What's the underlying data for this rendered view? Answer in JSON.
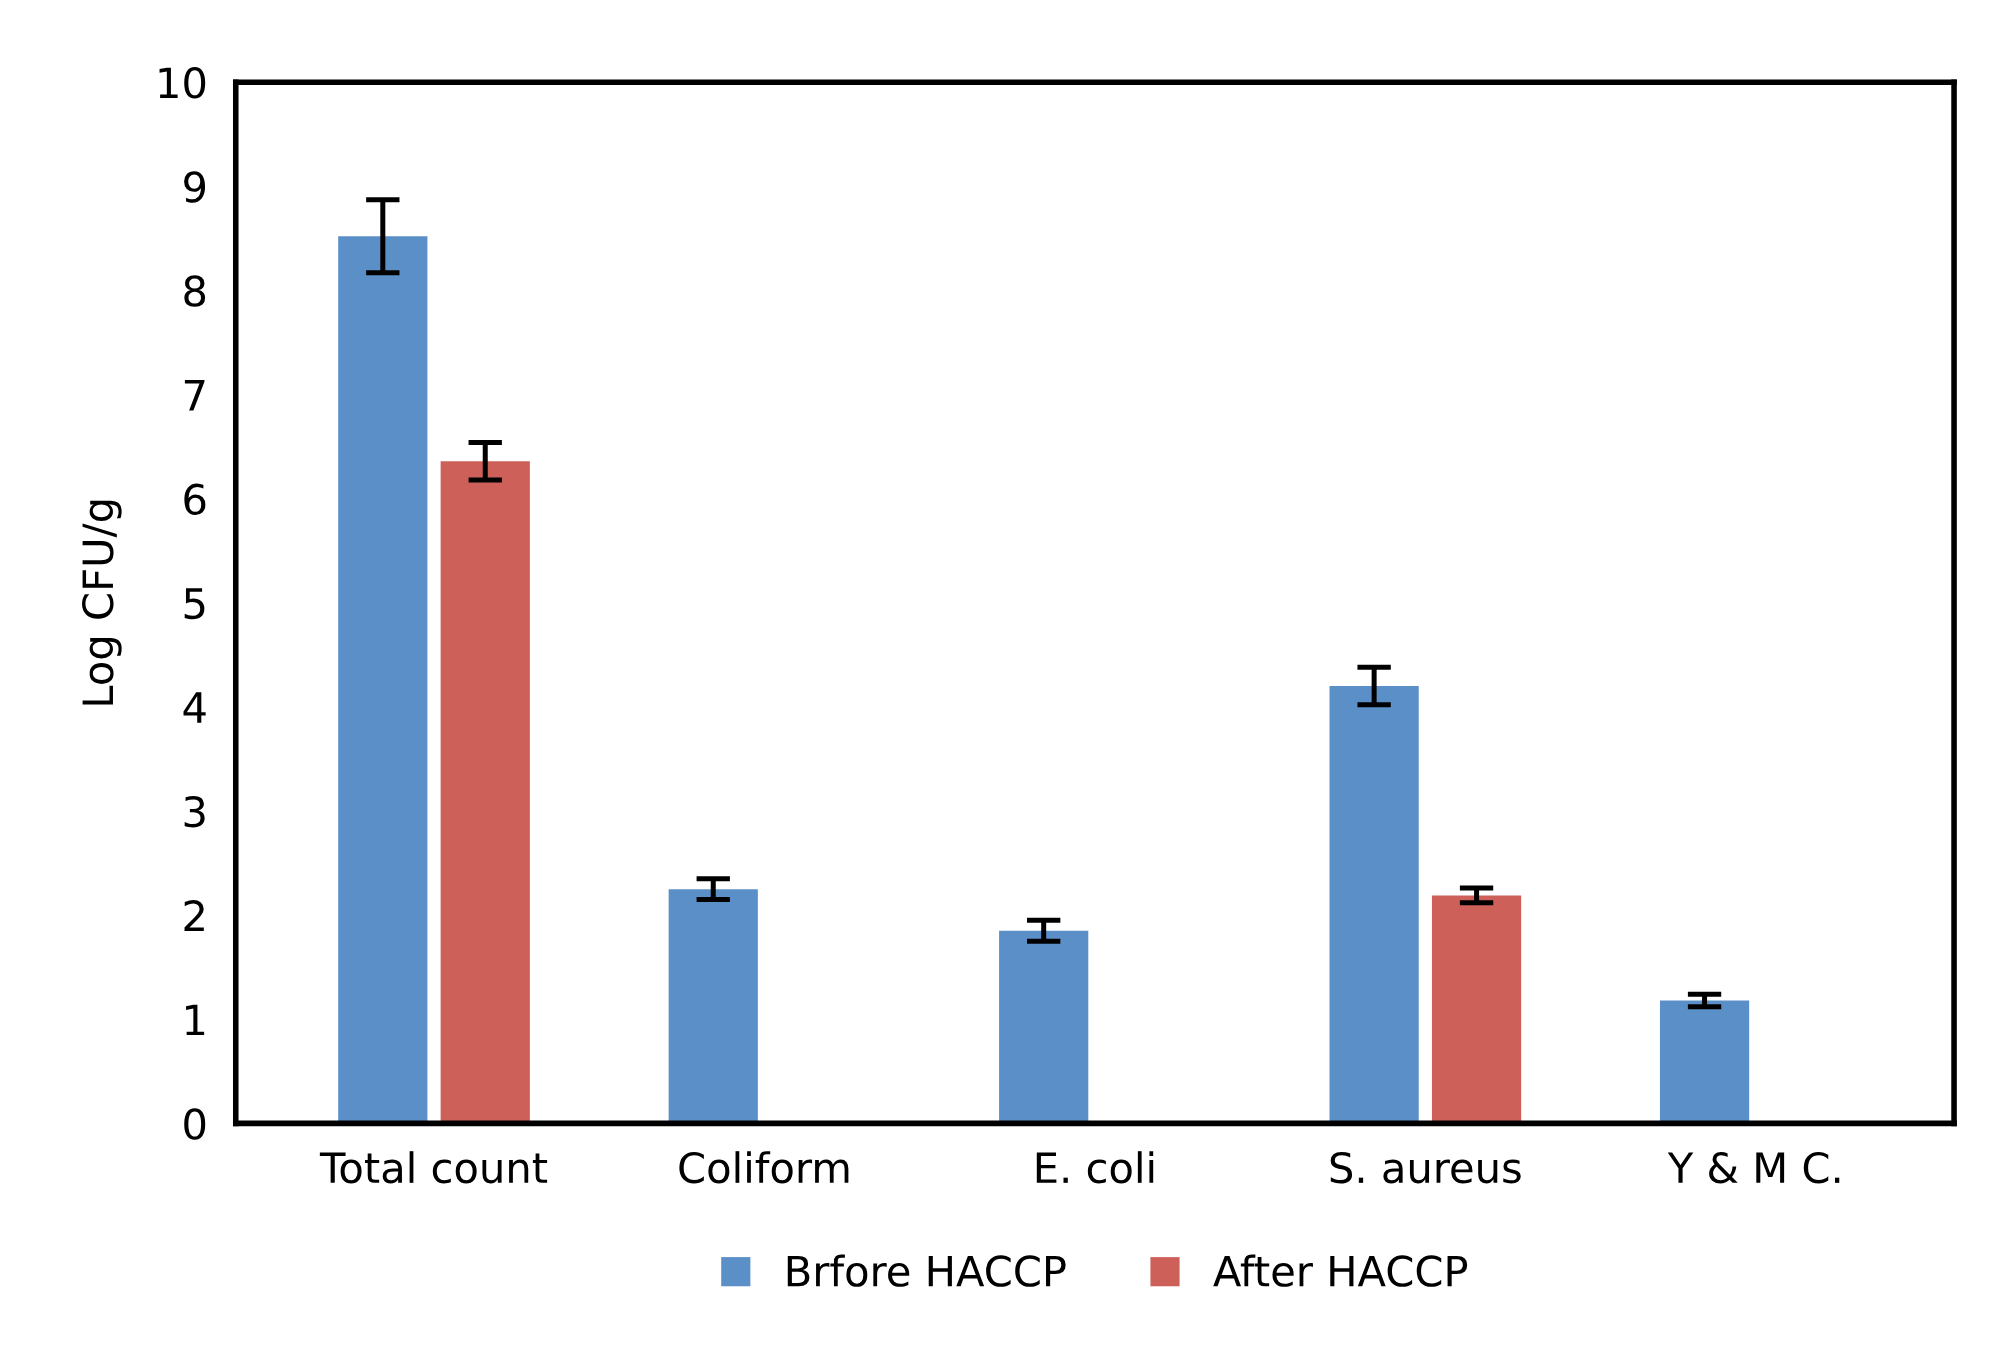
{
  "chart_data": {
    "type": "bar",
    "ylabel": "Log CFU/g",
    "categories": [
      "Total count",
      "Coliform",
      "E. coli",
      "S. aureus",
      "Y & M C."
    ],
    "series": [
      {
        "name": "Brfore HACCP",
        "color": "#5b8fc7",
        "values": [
          8.52,
          2.25,
          1.85,
          4.2,
          1.18
        ],
        "errors": [
          0.35,
          0.1,
          0.1,
          0.18,
          0.06
        ]
      },
      {
        "name": "After HACCP",
        "color": "#cd6058",
        "values": [
          6.36,
          null,
          null,
          2.19,
          null
        ],
        "errors": [
          0.18,
          null,
          null,
          0.07,
          null
        ]
      }
    ],
    "ylim": [
      0,
      10
    ],
    "yticks": [
      0,
      1,
      2,
      3,
      4,
      5,
      6,
      7,
      8,
      9,
      10
    ],
    "grid": false,
    "legend": "bottom"
  }
}
